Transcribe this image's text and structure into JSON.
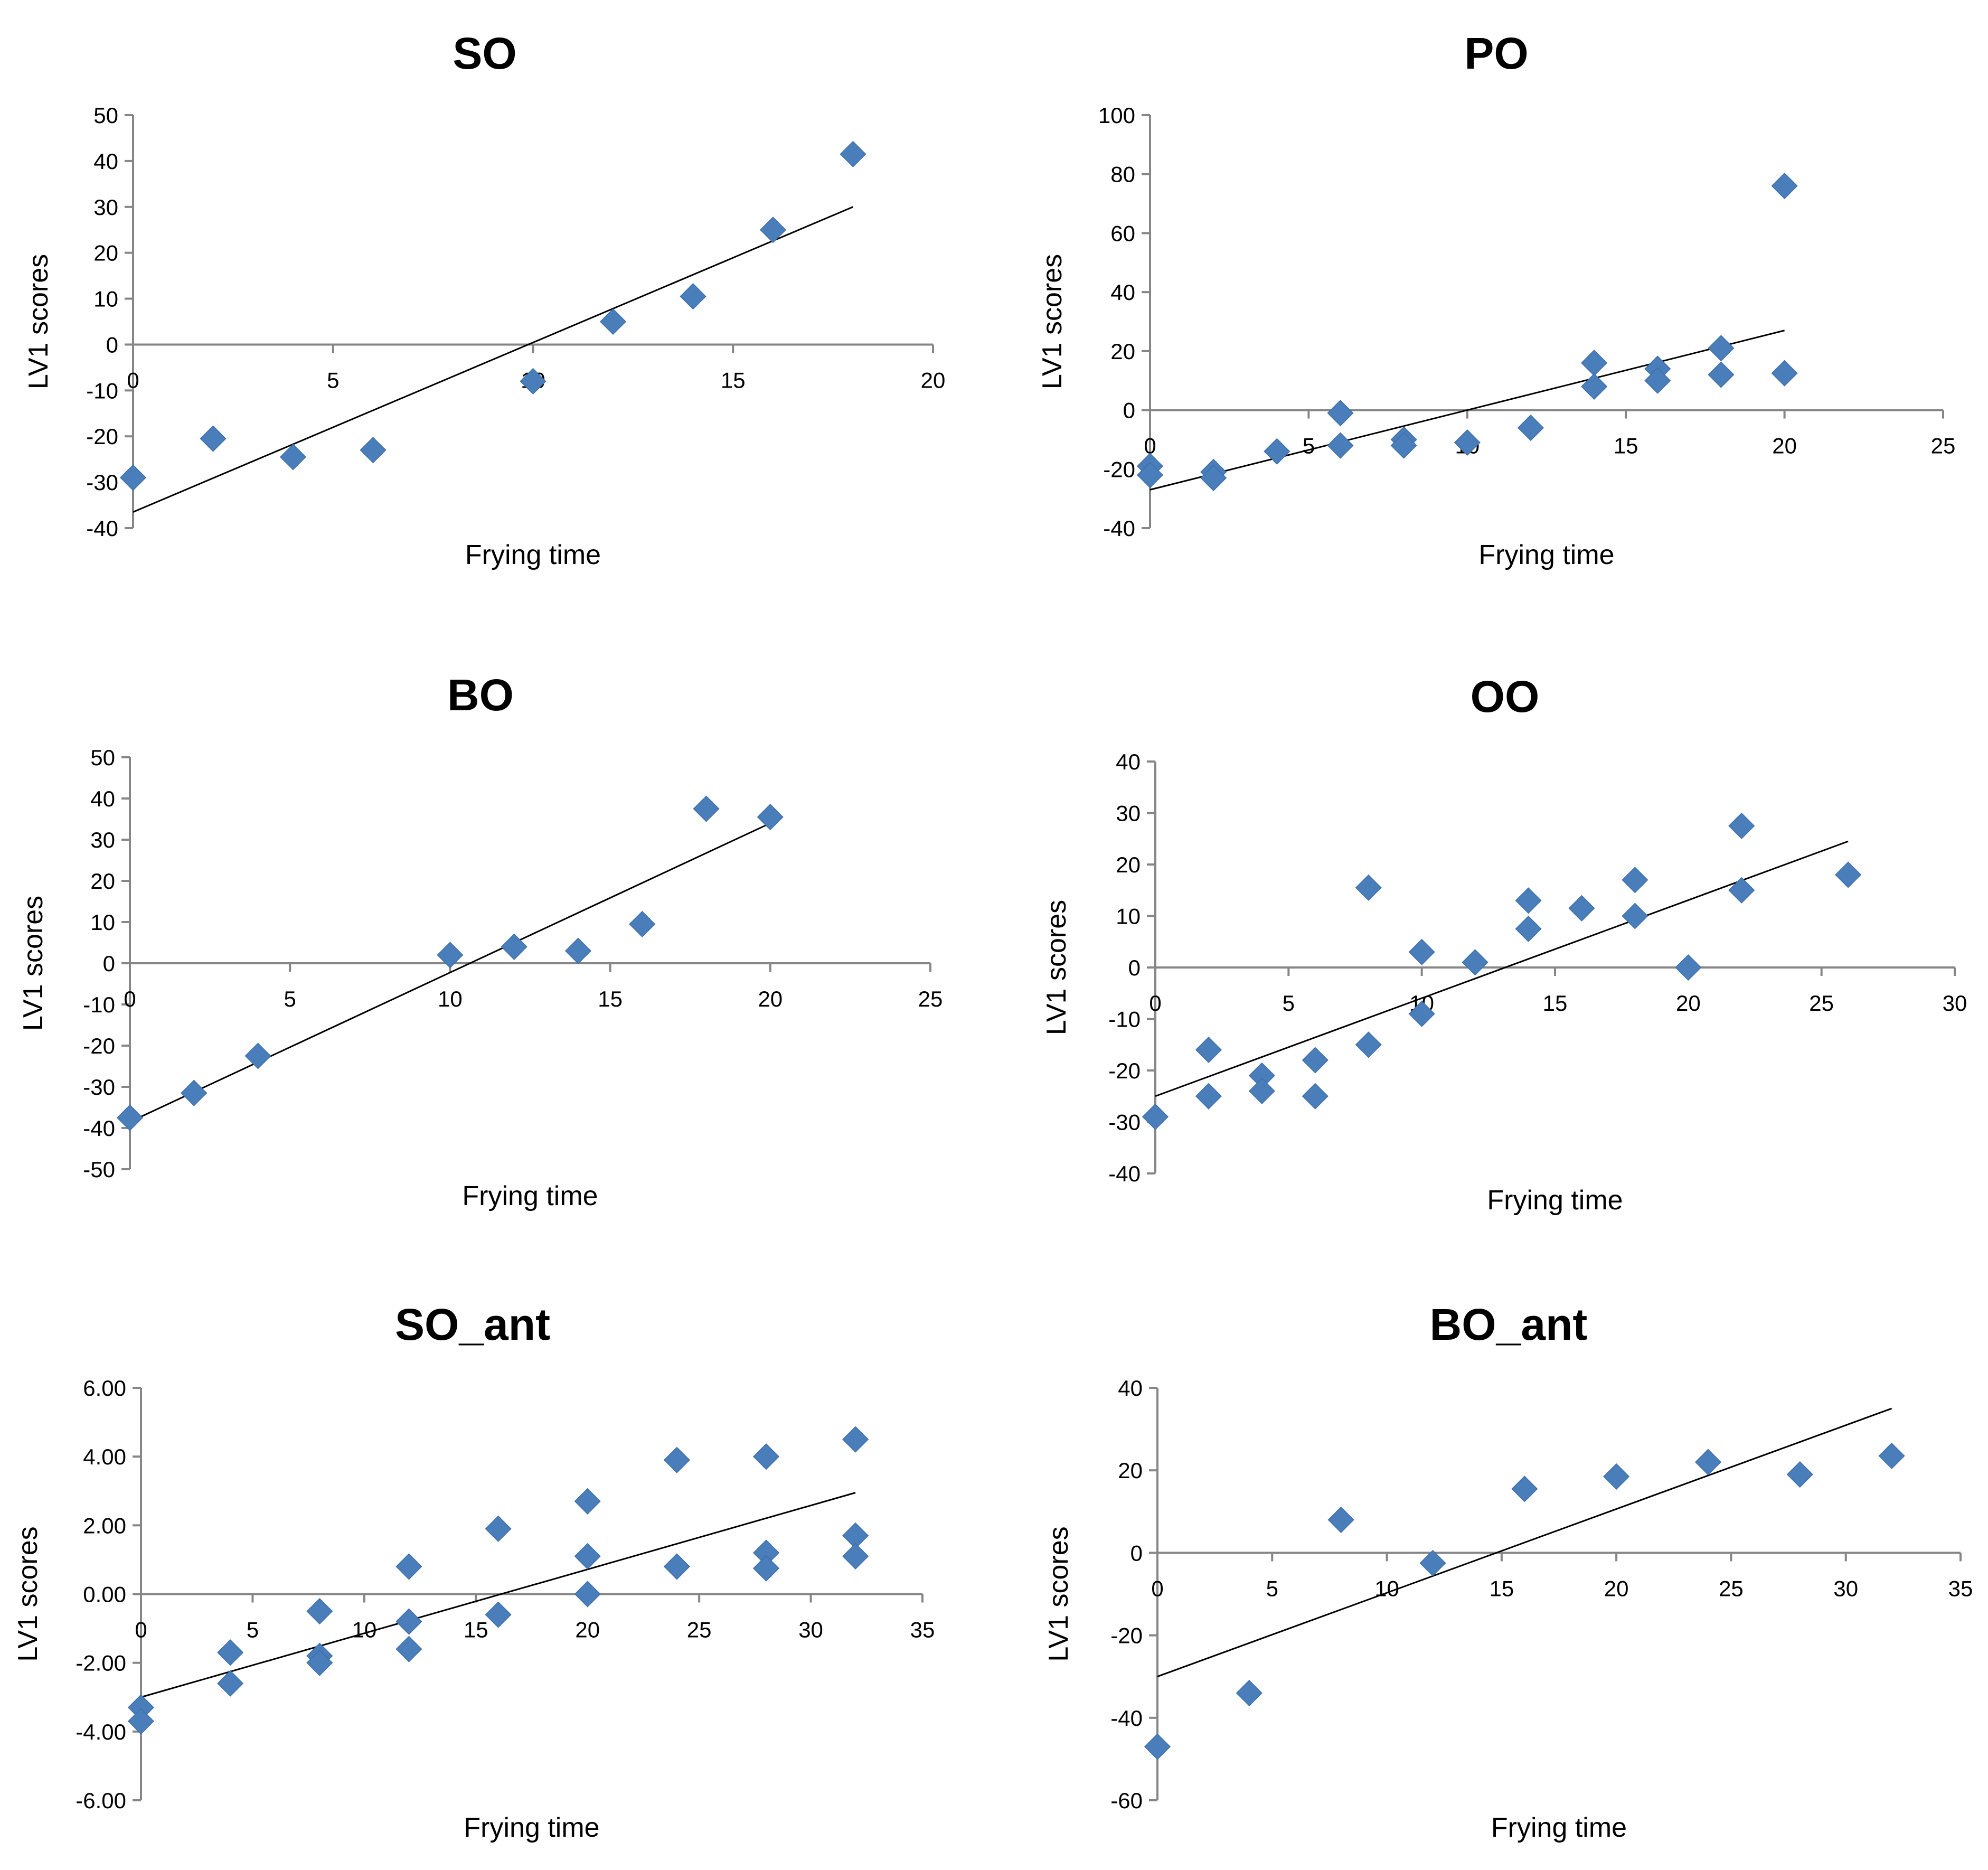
{
  "colors": {
    "marker": "#4a7ebb",
    "axis": "#868686",
    "trend": "#000000"
  },
  "chart_data": [
    {
      "type": "scatter",
      "title": "SO",
      "xlabel": "Frying time",
      "ylabel": "LV1 scores",
      "xlim": [
        0,
        20
      ],
      "ylim": [
        -40,
        50
      ],
      "xstep": 5,
      "ystep": 10,
      "ydecimals": 0,
      "points": [
        [
          0,
          -29
        ],
        [
          2,
          -20.5
        ],
        [
          4,
          -24.5
        ],
        [
          6,
          -23
        ],
        [
          10,
          -8
        ],
        [
          12,
          5
        ],
        [
          14,
          10.5
        ],
        [
          16,
          25
        ],
        [
          18,
          41.5
        ]
      ],
      "trend": [
        [
          0,
          -36.5
        ],
        [
          18,
          30
        ]
      ]
    },
    {
      "type": "scatter",
      "title": "PO",
      "xlabel": "Frying time",
      "ylabel": "LV1 scores",
      "xlim": [
        0,
        25
      ],
      "ylim": [
        -40,
        100
      ],
      "xstep": 5,
      "ystep": 20,
      "ydecimals": 0,
      "points": [
        [
          0,
          -19
        ],
        [
          0,
          -22
        ],
        [
          2,
          -21
        ],
        [
          2,
          -23
        ],
        [
          4,
          -14
        ],
        [
          6,
          -1
        ],
        [
          6,
          -12
        ],
        [
          8,
          -10
        ],
        [
          8,
          -12
        ],
        [
          10,
          -11
        ],
        [
          12,
          -6
        ],
        [
          14,
          16
        ],
        [
          14,
          8
        ],
        [
          16,
          14
        ],
        [
          16,
          10
        ],
        [
          18,
          21
        ],
        [
          18,
          12
        ],
        [
          20,
          76
        ],
        [
          20,
          12.5
        ]
      ],
      "trend": [
        [
          0,
          -27
        ],
        [
          20,
          27
        ]
      ]
    },
    {
      "type": "scatter",
      "title": "BO",
      "xlabel": "Frying time",
      "ylabel": "LV1 scores",
      "xlim": [
        0,
        25
      ],
      "ylim": [
        -50,
        50
      ],
      "xstep": 5,
      "ystep": 10,
      "ydecimals": 0,
      "points": [
        [
          0,
          -37.5
        ],
        [
          2,
          -31.5
        ],
        [
          4,
          -22.5
        ],
        [
          10,
          2
        ],
        [
          12,
          4
        ],
        [
          14,
          3
        ],
        [
          16,
          9.5
        ],
        [
          18,
          37.5
        ],
        [
          20,
          35.5
        ]
      ],
      "trend": [
        [
          0,
          -38.5
        ],
        [
          20,
          34
        ]
      ]
    },
    {
      "type": "scatter",
      "title": "OO",
      "xlabel": "Frying time",
      "ylabel": "LV1 scores",
      "xlim": [
        0,
        30
      ],
      "ylim": [
        -40,
        40
      ],
      "xstep": 5,
      "ystep": 10,
      "ydecimals": 0,
      "points": [
        [
          0,
          -29
        ],
        [
          2,
          -16
        ],
        [
          2,
          -25
        ],
        [
          4,
          -21
        ],
        [
          4,
          -24
        ],
        [
          6,
          -18
        ],
        [
          6,
          -25
        ],
        [
          8,
          15.5
        ],
        [
          8,
          -15
        ],
        [
          10,
          3
        ],
        [
          10,
          -9
        ],
        [
          12,
          1
        ],
        [
          14,
          13
        ],
        [
          14,
          7.5
        ],
        [
          16,
          11.5
        ],
        [
          18,
          17
        ],
        [
          18,
          10
        ],
        [
          20,
          0
        ],
        [
          22,
          27.5
        ],
        [
          22,
          15
        ],
        [
          26,
          18
        ]
      ],
      "trend": [
        [
          0,
          -25
        ],
        [
          26,
          24.5
        ]
      ]
    },
    {
      "type": "scatter",
      "title": "SO_ant",
      "xlabel": "Frying time",
      "ylabel": "LV1 scores",
      "xlim": [
        0,
        35
      ],
      "ylim": [
        -6,
        6
      ],
      "xstep": 5,
      "ystep": 2,
      "ydecimals": 2,
      "points": [
        [
          0,
          -3.3
        ],
        [
          0,
          -3.7
        ],
        [
          4,
          -1.7
        ],
        [
          4,
          -2.6
        ],
        [
          8,
          -0.5
        ],
        [
          8,
          -1.8
        ],
        [
          8,
          -2
        ],
        [
          12,
          0.8
        ],
        [
          12,
          -0.8
        ],
        [
          12,
          -1.6
        ],
        [
          16,
          1.9
        ],
        [
          16,
          -0.6
        ],
        [
          20,
          2.7
        ],
        [
          20,
          1.1
        ],
        [
          20,
          0
        ],
        [
          24,
          3.9
        ],
        [
          24,
          0.8
        ],
        [
          28,
          4
        ],
        [
          28,
          1.2
        ],
        [
          28,
          0.75
        ],
        [
          32,
          4.5
        ],
        [
          32,
          1.7
        ],
        [
          32,
          1.1
        ]
      ],
      "trend": [
        [
          0,
          -3
        ],
        [
          32,
          2.95
        ]
      ]
    },
    {
      "type": "scatter",
      "title": "BO_ant",
      "xlabel": "Frying time",
      "ylabel": "LV1 scores",
      "xlim": [
        0,
        35
      ],
      "ylim": [
        -60,
        40
      ],
      "xstep": 5,
      "ystep": 20,
      "ydecimals": 0,
      "points": [
        [
          0,
          -47
        ],
        [
          4,
          -34
        ],
        [
          8,
          8
        ],
        [
          12,
          -2.5
        ],
        [
          16,
          15.5
        ],
        [
          20,
          18.5
        ],
        [
          24,
          22
        ],
        [
          28,
          19
        ],
        [
          32,
          23.5
        ]
      ],
      "trend": [
        [
          0,
          -30
        ],
        [
          32,
          35
        ]
      ]
    }
  ]
}
